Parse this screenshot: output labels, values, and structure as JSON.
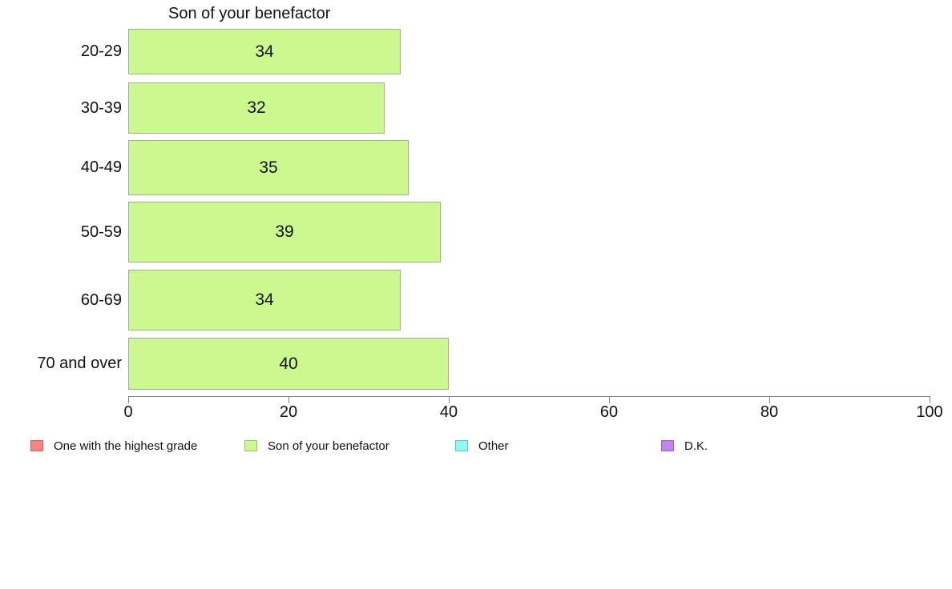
{
  "chart_data": {
    "type": "bar",
    "orientation": "horizontal",
    "title": "Son of your benefactor",
    "categories": [
      "20-29",
      "30-39",
      "40-49",
      "50-59",
      "60-69",
      "70 and over"
    ],
    "series": [
      {
        "name": "Son of your benefactor",
        "values": [
          34,
          32,
          35,
          39,
          34,
          40
        ]
      }
    ],
    "values": [
      34,
      32,
      35,
      39,
      34,
      40
    ],
    "value_labels": [
      "34",
      "32",
      "35",
      "39",
      "34",
      "40"
    ],
    "xlim": [
      0,
      100
    ],
    "x_ticks": [
      0,
      20,
      40,
      60,
      80,
      100
    ],
    "x_tick_labels": [
      "0",
      "20",
      "40",
      "60",
      "80",
      "100"
    ],
    "grid": false,
    "legend_position": "bottom",
    "colors": {
      "bar_fill": "#ccf98f",
      "bar_border": "#a5ab9c",
      "axis": "#808080",
      "text": "#111111",
      "background": "#ffffff"
    },
    "legend": [
      {
        "label": "One with the highest grade",
        "color": "#f8837f",
        "border": "#bb6864"
      },
      {
        "label": "Son of your benefactor",
        "color": "#ccf98f",
        "border": "#9ac46c"
      },
      {
        "label": "Other",
        "color": "#8efcf6",
        "border": "#6ec4bf"
      },
      {
        "label": "D.K.",
        "color": "#c184f0",
        "border": "#9166b4"
      }
    ]
  }
}
